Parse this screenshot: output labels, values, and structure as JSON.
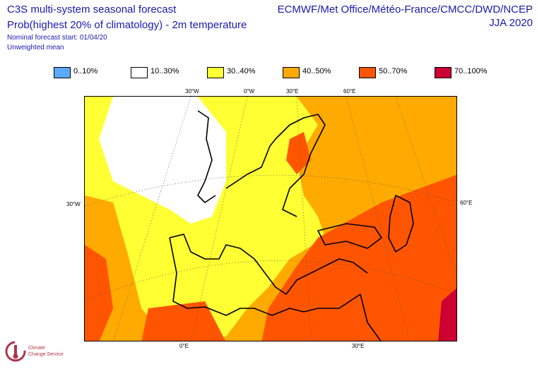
{
  "header": {
    "title": "C3S multi-system seasonal forecast",
    "subtitle": "Prob(highest 20% of climatology) - 2m temperature",
    "forecast_start": "Nominal forecast start: 01/04/20",
    "mean_type": "Unweighted mean",
    "providers": "ECMWF/Met Office/Météo-France/CMCC/DWD/NCEP",
    "season": "JJA 2020"
  },
  "legend": [
    {
      "label": "0..10%",
      "color": "#5aaaff"
    },
    {
      "label": "10..30%",
      "color": "#ffffff"
    },
    {
      "label": "30..40%",
      "color": "#ffff33"
    },
    {
      "label": "40..50%",
      "color": "#ffaa00"
    },
    {
      "label": "50..70%",
      "color": "#ff5500"
    },
    {
      "label": "70..100%",
      "color": "#cc0033"
    }
  ],
  "grid_labels": {
    "top": [
      "30°W",
      "0°W",
      "30°E",
      "60°E"
    ],
    "left": "30°W",
    "right": "60°E",
    "bottom": [
      "0°E",
      "30°E"
    ]
  },
  "logo": {
    "name": "Climate Change Service",
    "text_line1": "Climate",
    "text_line2": "Change Service"
  }
}
